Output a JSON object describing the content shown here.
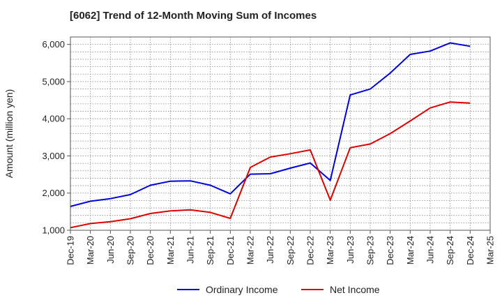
{
  "chart_data": {
    "type": "line",
    "title": "[6062]  Trend of 12-Month Moving Sum of Incomes",
    "xlabel": "",
    "ylabel": "Amount (million yen)",
    "ylim": [
      1000,
      6200
    ],
    "yticks": [
      1000,
      2000,
      3000,
      4000,
      5000,
      6000
    ],
    "ytick_labels": [
      "1,000",
      "2,000",
      "3,000",
      "4,000",
      "5,000",
      "6,000"
    ],
    "grid": true,
    "legend_position": "bottom",
    "categories": [
      "Dec-19",
      "Mar-20",
      "Jun-20",
      "Sep-20",
      "Dec-20",
      "Mar-21",
      "Jun-21",
      "Sep-21",
      "Dec-21",
      "Mar-22",
      "Jun-22",
      "Sep-22",
      "Dec-22",
      "Mar-23",
      "Jun-23",
      "Sep-23",
      "Dec-23",
      "Mar-24",
      "Jun-24",
      "Sep-24",
      "Dec-24",
      "Mar-25"
    ],
    "series": [
      {
        "name": "Ordinary Income",
        "color": "#0000dd",
        "values": [
          1640,
          1780,
          1850,
          1960,
          2210,
          2320,
          2330,
          2210,
          1980,
          2510,
          2520,
          2670,
          2810,
          2340,
          4640,
          4800,
          5230,
          5730,
          5820,
          6040,
          5950,
          null
        ]
      },
      {
        "name": "Net Income",
        "color": "#dd0000",
        "values": [
          1070,
          1180,
          1230,
          1310,
          1450,
          1520,
          1550,
          1480,
          1320,
          2690,
          2970,
          3060,
          3160,
          1810,
          3220,
          3320,
          3600,
          3940,
          4290,
          4450,
          4420,
          null
        ]
      }
    ]
  }
}
